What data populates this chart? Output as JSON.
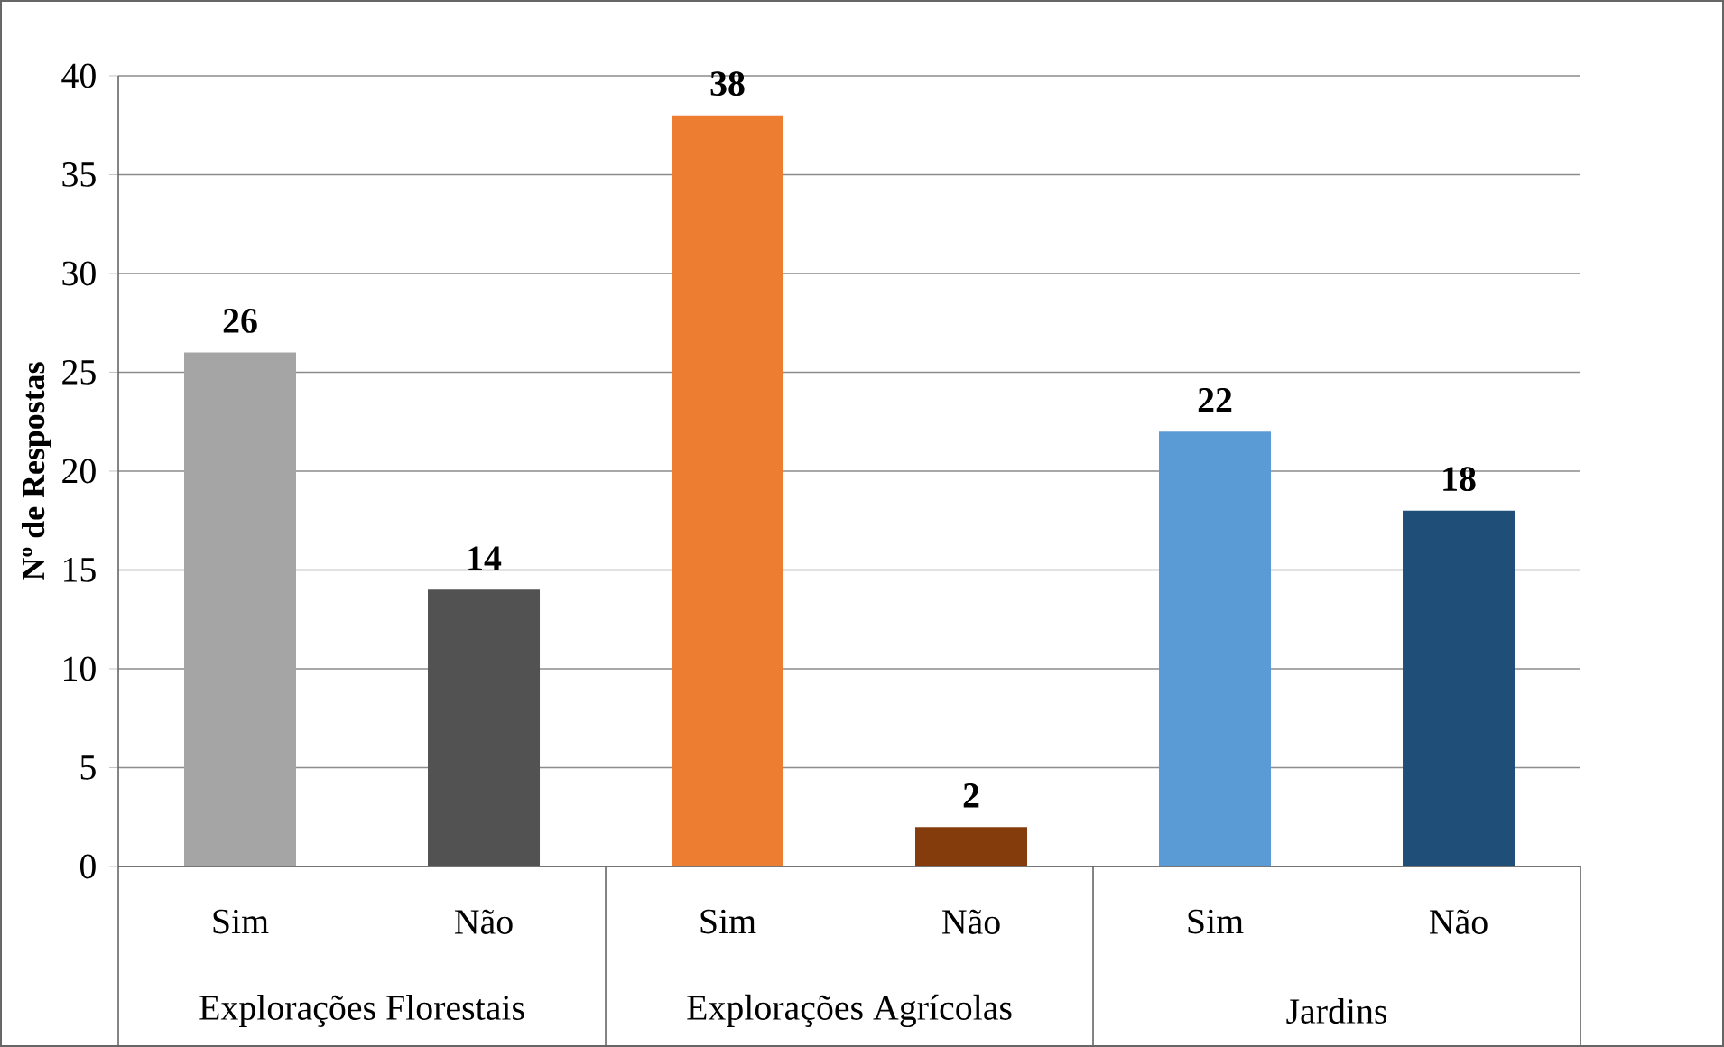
{
  "chart_data": {
    "type": "bar",
    "ylabel": "Nº de Respostas",
    "categories": [
      "Sim",
      "Não",
      "Sim",
      "Não",
      "Sim",
      "Não"
    ],
    "values": [
      26,
      14,
      38,
      2,
      22,
      18
    ],
    "colors": [
      "#a5a5a5",
      "#525252",
      "#ed7d31",
      "#843c0c",
      "#5b9bd5",
      "#1f4e79"
    ],
    "annotations": [
      "Explorações Florestais",
      "Explorações Agrícolas",
      "Jardins"
    ],
    "ylim": [
      0,
      40
    ],
    "yticks": [
      0,
      5,
      10,
      15,
      20,
      25,
      30,
      35,
      40
    ],
    "grid": "y",
    "data_labels": true
  }
}
